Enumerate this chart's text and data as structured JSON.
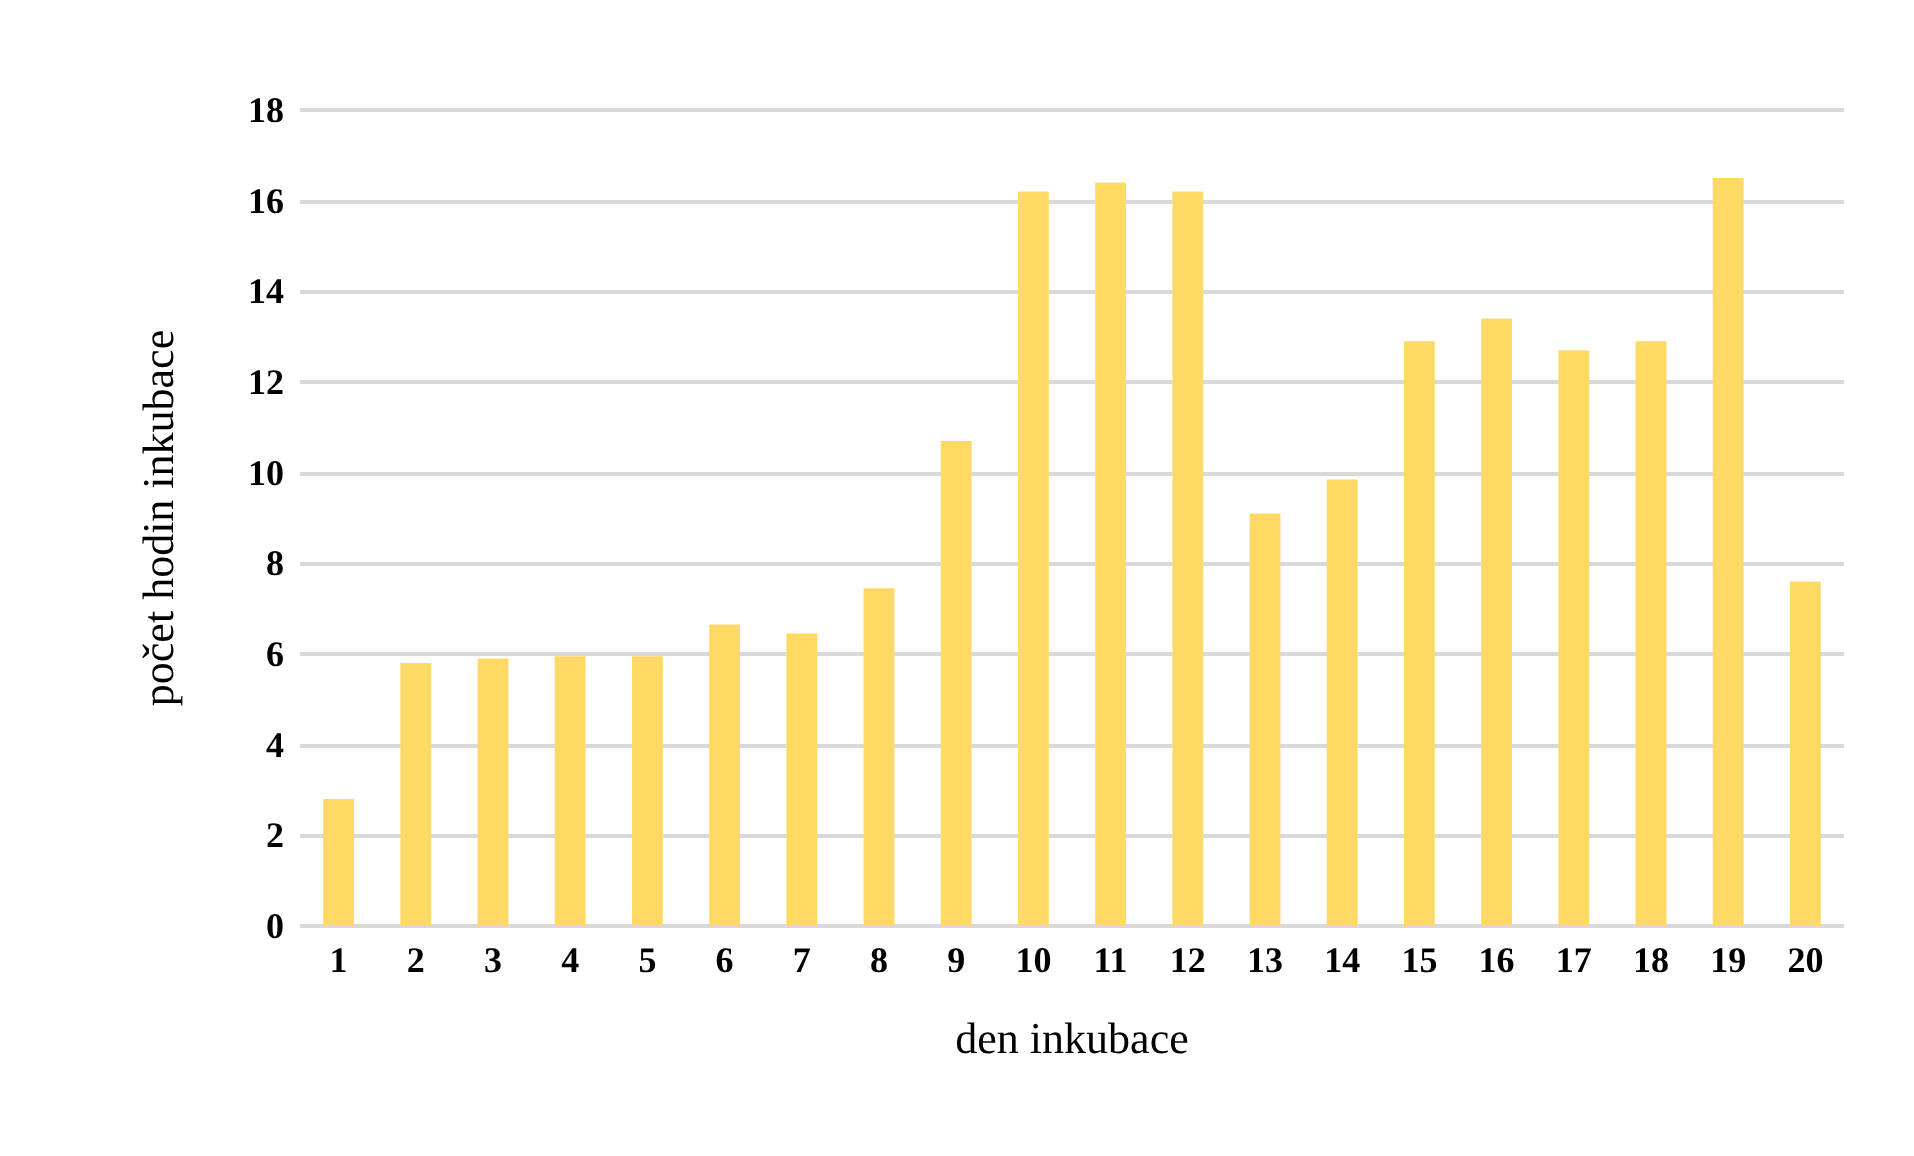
{
  "chart_data": {
    "type": "bar",
    "xlabel": "den inkubace",
    "ylabel": "počet hodin inkubace",
    "categories": [
      "1",
      "2",
      "3",
      "4",
      "5",
      "6",
      "7",
      "8",
      "9",
      "10",
      "11",
      "12",
      "13",
      "14",
      "15",
      "16",
      "17",
      "18",
      "19",
      "20"
    ],
    "values": [
      2.8,
      5.8,
      5.9,
      5.95,
      5.95,
      6.65,
      6.45,
      7.45,
      10.7,
      16.2,
      16.4,
      16.2,
      9.1,
      9.85,
      12.9,
      13.4,
      12.7,
      12.9,
      16.5,
      7.6
    ],
    "color": "#ffd966",
    "ylim": [
      0,
      18
    ],
    "yticks": [
      0,
      2,
      4,
      6,
      8,
      10,
      12,
      14,
      16,
      18
    ],
    "grid": "y"
  }
}
